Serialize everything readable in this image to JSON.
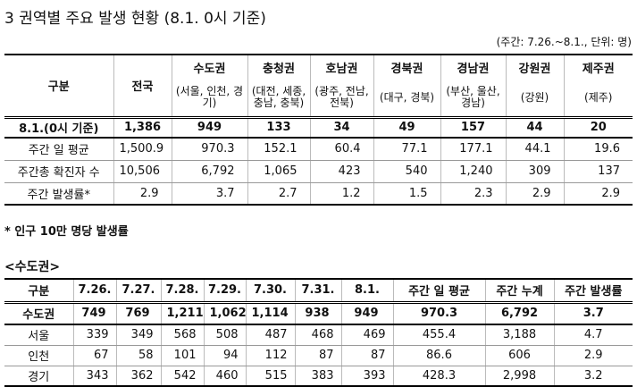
{
  "title": "3 권역별 주요 발생 현황 (8.1. 0시 기준)",
  "unit_note": "(주간: 7.26.~8.1., 단위: 명)",
  "table1": {
    "header": [
      "구분",
      "전국"
    ],
    "regions": [
      {
        "name": "수도권",
        "sub": "(서울, 인천, 경기)"
      },
      {
        "name": "충청권",
        "sub": "(대전, 세종, 충남, 충북)"
      },
      {
        "name": "호남권",
        "sub": "(광주, 전남, 전북)"
      },
      {
        "name": "경북권",
        "sub": "(대구, 경북)"
      },
      {
        "name": "경남권",
        "sub": "(부산, 울산, 경남)"
      },
      {
        "name": "강원권",
        "sub": "(강원)"
      },
      {
        "name": "제주권",
        "sub": "(제주)"
      }
    ],
    "rows": [
      [
        "8.1.(0시 기준)",
        "1,386",
        "949",
        "133",
        "34",
        "49",
        "157",
        "44",
        "20"
      ],
      [
        "주간 일 평균",
        "1,500.9",
        "970.3",
        "152.1",
        "60.4",
        "77.1",
        "177.1",
        "44.1",
        "19.6"
      ],
      [
        "주간총 확진자 수",
        "10,506",
        "6,792",
        "1,065",
        "423",
        "540",
        "1,240",
        "309",
        "137"
      ],
      [
        "주간 발생률*",
        "2.9",
        "3.7",
        "2.7",
        "1.2",
        "1.5",
        "2.3",
        "2.9",
        "2.9"
      ]
    ]
  },
  "footnote": "* 인구 10만 명당 발생률",
  "section_title": "<수도권>",
  "table2": {
    "header": [
      "구분",
      "7.26.",
      "7.27.",
      "7.28.",
      "7.29.",
      "7.30.",
      "7.31.",
      "8.1.",
      "주간 일 평균",
      "주간 누계",
      "주간 발생률"
    ],
    "rows": [
      [
        "수도권",
        "749",
        "769",
        "1,211",
        "1,062",
        "1,114",
        "938",
        "949",
        "970.3",
        "6,792",
        "3.7"
      ],
      [
        "서울",
        "339",
        "349",
        "568",
        "508",
        "487",
        "468",
        "469",
        "455.4",
        "3,188",
        "4.7"
      ],
      [
        "인천",
        "67",
        "58",
        "101",
        "94",
        "112",
        "87",
        "87",
        "86.6",
        "606",
        "2.9"
      ],
      [
        "경기",
        "343",
        "362",
        "542",
        "460",
        "515",
        "383",
        "393",
        "428.3",
        "2,998",
        "3.2"
      ]
    ]
  }
}
